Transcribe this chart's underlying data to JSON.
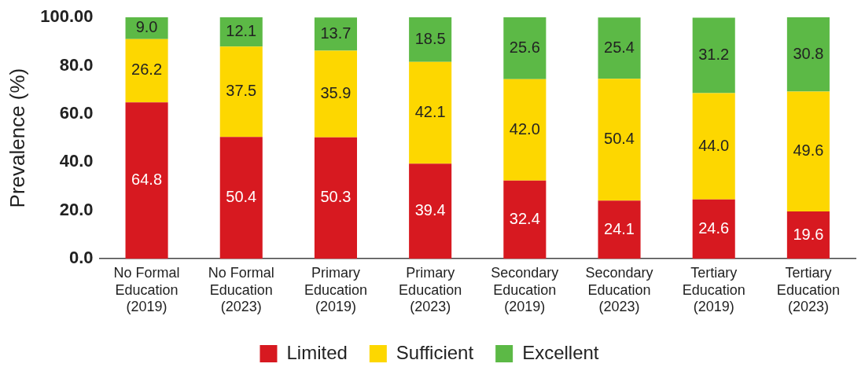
{
  "chart_data": {
    "type": "bar",
    "stacked": true,
    "ylabel": "Prevalence (%)",
    "legend": "bottom",
    "grid": false,
    "categories": [
      "No Formal\nEducation\n(2019)",
      "No Formal\nEducation\n(2023)",
      "Primary\nEducation\n(2019)",
      "Primary\nEducation\n(2023)",
      "Secondary\nEducation\n(2019)",
      "Secondary\nEducation\n(2023)",
      "Tertiary\nEducation\n(2019)",
      "Tertiary\nEducation\n(2023)"
    ],
    "ylim": [
      0,
      100
    ],
    "yticks": [
      {
        "value": 0,
        "label": "0.0"
      },
      {
        "value": 20,
        "label": "20.0"
      },
      {
        "value": 40,
        "label": "40.0"
      },
      {
        "value": 60,
        "label": "60.0"
      },
      {
        "value": 80,
        "label": "80.0"
      },
      {
        "value": 100,
        "label": "100.00"
      }
    ],
    "series": [
      {
        "name": "Limited",
        "color": "#d71920",
        "values": [
          64.8,
          50.4,
          50.3,
          39.4,
          32.4,
          24.1,
          24.6,
          19.6
        ],
        "value_labels": [
          "64.8",
          "50.4",
          "50.3",
          "39.4",
          "32.4",
          "24.1",
          "24.6",
          "19.6"
        ]
      },
      {
        "name": "Sufficient",
        "color": "#fdd700",
        "values": [
          26.2,
          37.5,
          35.9,
          42.1,
          42.0,
          50.4,
          44.0,
          49.6
        ],
        "value_labels": [
          "26.2",
          "37.5",
          "35.9",
          "42.1",
          "42.0",
          "50.4",
          "44.0",
          "49.6"
        ]
      },
      {
        "name": "Excellent",
        "color": "#5cb946",
        "values": [
          9.0,
          12.1,
          13.7,
          18.5,
          25.6,
          25.4,
          31.2,
          30.8
        ],
        "value_labels": [
          "9.0",
          "12.1",
          "13.7",
          "18.5",
          "25.6",
          "25.4",
          "31.2",
          "30.8"
        ]
      }
    ]
  }
}
